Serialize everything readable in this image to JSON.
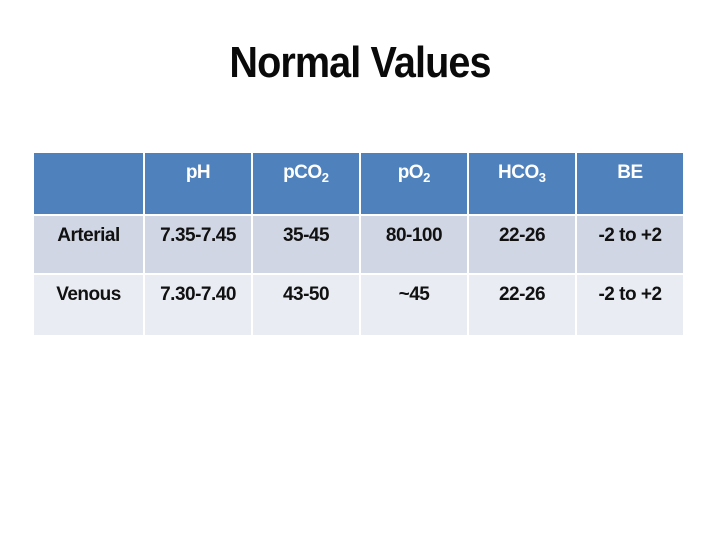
{
  "slide": {
    "title": "Normal Values"
  },
  "colors": {
    "background": "#ffffff",
    "title_text": "#0a0a0a",
    "header_bg": "#4f81bd",
    "header_text": "#ffffff",
    "row1_bg": "#d0d6e3",
    "row2_bg": "#e9ecf3",
    "body_text": "#111111"
  },
  "table": {
    "columns": [
      {
        "base": "",
        "sub": ""
      },
      {
        "base": "pH",
        "sub": ""
      },
      {
        "base": "pCO",
        "sub": "2"
      },
      {
        "base": "pO",
        "sub": "2"
      },
      {
        "base": "HCO",
        "sub": "3"
      },
      {
        "base": "BE",
        "sub": ""
      }
    ],
    "rows": [
      {
        "label": "Arterial",
        "values": [
          "7.35-7.45",
          "35-45",
          "80-100",
          "22-26",
          "-2 to +2"
        ]
      },
      {
        "label": "Venous",
        "values": [
          "7.30-7.40",
          "43-50",
          "~45",
          "22-26",
          "-2 to +2"
        ]
      }
    ]
  }
}
